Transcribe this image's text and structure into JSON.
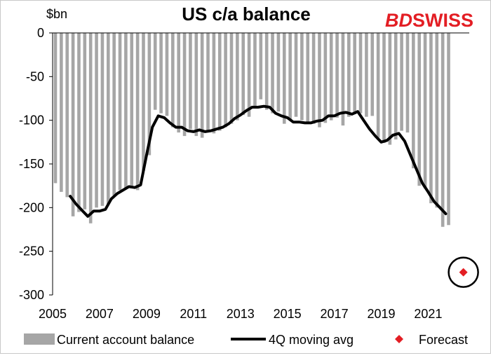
{
  "chart_data": {
    "type": "bar",
    "title": "US c/a balance",
    "ylabel": "$bn",
    "ylim": [
      -300,
      0
    ],
    "yticks": [
      0,
      -50,
      -100,
      -150,
      -200,
      -250,
      -300
    ],
    "xlim": [
      2005.0,
      2022.75
    ],
    "xticks": [
      2005,
      2007,
      2009,
      2011,
      2013,
      2015,
      2017,
      2019,
      2021
    ],
    "grid": false,
    "legend_position": "bottom",
    "series": [
      {
        "name": "Current account balance",
        "kind": "bar",
        "color": "#a6a6a6",
        "x": [
          2005.0,
          2005.25,
          2005.5,
          2005.75,
          2006.0,
          2006.25,
          2006.5,
          2006.75,
          2007.0,
          2007.25,
          2007.5,
          2007.75,
          2008.0,
          2008.25,
          2008.5,
          2008.75,
          2009.0,
          2009.25,
          2009.5,
          2009.75,
          2010.0,
          2010.25,
          2010.5,
          2010.75,
          2011.0,
          2011.25,
          2011.5,
          2011.75,
          2012.0,
          2012.25,
          2012.5,
          2012.75,
          2013.0,
          2013.25,
          2013.5,
          2013.75,
          2014.0,
          2014.25,
          2014.5,
          2014.75,
          2015.0,
          2015.25,
          2015.5,
          2015.75,
          2016.0,
          2016.25,
          2016.5,
          2016.75,
          2017.0,
          2017.25,
          2017.5,
          2017.75,
          2018.0,
          2018.25,
          2018.5,
          2018.75,
          2019.0,
          2019.25,
          2019.5,
          2019.75,
          2020.0,
          2020.25,
          2020.5,
          2020.75,
          2021.0,
          2021.25,
          2021.5,
          2021.75
        ],
        "values": [
          -172,
          -182,
          -188,
          -210,
          -205,
          -202,
          -218,
          -200,
          -198,
          -196,
          -186,
          -180,
          -178,
          -178,
          -180,
          -158,
          -140,
          -88,
          -92,
          -95,
          -108,
          -114,
          -118,
          -110,
          -118,
          -120,
          -112,
          -115,
          -112,
          -108,
          -104,
          -100,
          -94,
          -96,
          -85,
          -76,
          -88,
          -92,
          -90,
          -104,
          -100,
          -96,
          -100,
          -102,
          -104,
          -108,
          -103,
          -100,
          -97,
          -106,
          -96,
          -93,
          -92,
          -96,
          -95,
          -120,
          -126,
          -128,
          -122,
          -112,
          -114,
          -155,
          -175,
          -178,
          -195,
          -200,
          -222,
          -220
        ]
      },
      {
        "name": "4Q moving avg",
        "kind": "line",
        "color": "#000000",
        "x": [
          2005.75,
          2006.0,
          2006.25,
          2006.5,
          2006.75,
          2007.0,
          2007.25,
          2007.5,
          2007.75,
          2008.0,
          2008.25,
          2008.5,
          2008.75,
          2009.0,
          2009.25,
          2009.5,
          2009.75,
          2010.0,
          2010.25,
          2010.5,
          2010.75,
          2011.0,
          2011.25,
          2011.5,
          2011.75,
          2012.0,
          2012.25,
          2012.5,
          2012.75,
          2013.0,
          2013.25,
          2013.5,
          2013.75,
          2014.0,
          2014.25,
          2014.5,
          2014.75,
          2015.0,
          2015.25,
          2015.5,
          2015.75,
          2016.0,
          2016.25,
          2016.5,
          2016.75,
          2017.0,
          2017.25,
          2017.5,
          2017.75,
          2018.0,
          2018.25,
          2018.5,
          2018.75,
          2019.0,
          2019.25,
          2019.5,
          2019.75,
          2020.0,
          2020.25,
          2020.5,
          2020.75,
          2021.0,
          2021.25,
          2021.5,
          2021.75
        ],
        "values": [
          -187,
          -196,
          -203,
          -210,
          -204,
          -204,
          -202,
          -190,
          -184,
          -180,
          -176,
          -177,
          -174,
          -140,
          -108,
          -95,
          -97,
          -103,
          -108,
          -108,
          -112,
          -113,
          -111,
          -113,
          -112,
          -110,
          -108,
          -104,
          -98,
          -94,
          -89,
          -85,
          -85,
          -84,
          -85,
          -92,
          -95,
          -97,
          -102,
          -102,
          -103,
          -103,
          -101,
          -100,
          -95,
          -95,
          -92,
          -91,
          -93,
          -90,
          -100,
          -110,
          -118,
          -125,
          -123,
          -117,
          -115,
          -124,
          -140,
          -156,
          -172,
          -182,
          -193,
          -200,
          -207
        ]
      },
      {
        "name": "Forecast",
        "kind": "point",
        "color": "#e31e24",
        "x": [
          2022.5
        ],
        "values": [
          -274
        ]
      }
    ]
  },
  "logo": {
    "part1": "BD",
    "part2": "SWISS",
    "color1": "#e31e24",
    "color2": "#e31e24"
  }
}
